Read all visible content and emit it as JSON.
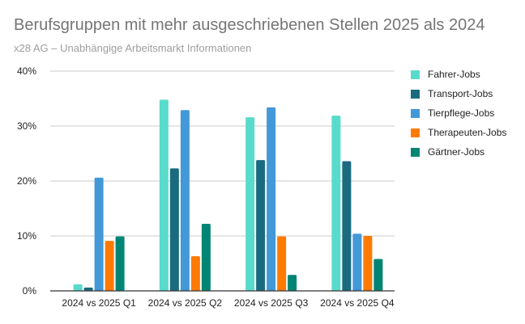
{
  "chart_data": {
    "type": "bar",
    "title": "Berufsgruppen mit mehr ausgeschriebenen Stellen 2025 als 2024",
    "subtitle": "x28 AG – Unabhängige Arbeitsmarkt Informationen",
    "xlabel": "",
    "ylabel": "",
    "ylim": [
      0,
      40
    ],
    "yticks": [
      0,
      10,
      20,
      30,
      40
    ],
    "ytick_labels": [
      "0%",
      "10%",
      "20%",
      "30%",
      "40%"
    ],
    "grid": true,
    "legend_position": "right",
    "categories": [
      "2024 vs 2025 Q1",
      "2024 vs 2025 Q2",
      "2024 vs 2025 Q3",
      "2024 vs 2025 Q4"
    ],
    "series": [
      {
        "name": "Fahrer-Jobs",
        "color": "#59dbcb",
        "values": [
          1.2,
          34.8,
          31.6,
          31.9
        ]
      },
      {
        "name": "Transport-Jobs",
        "color": "#1b6b80",
        "values": [
          0.6,
          22.3,
          23.8,
          23.6
        ]
      },
      {
        "name": "Tierpflege-Jobs",
        "color": "#4398d8",
        "values": [
          20.6,
          32.9,
          33.4,
          10.4
        ]
      },
      {
        "name": "Therapeuten-Jobs",
        "color": "#ff7a00",
        "values": [
          9.1,
          6.3,
          9.9,
          10.0
        ]
      },
      {
        "name": "Gärtner-Jobs",
        "color": "#008575",
        "values": [
          9.9,
          12.2,
          2.9,
          5.8
        ]
      }
    ]
  }
}
